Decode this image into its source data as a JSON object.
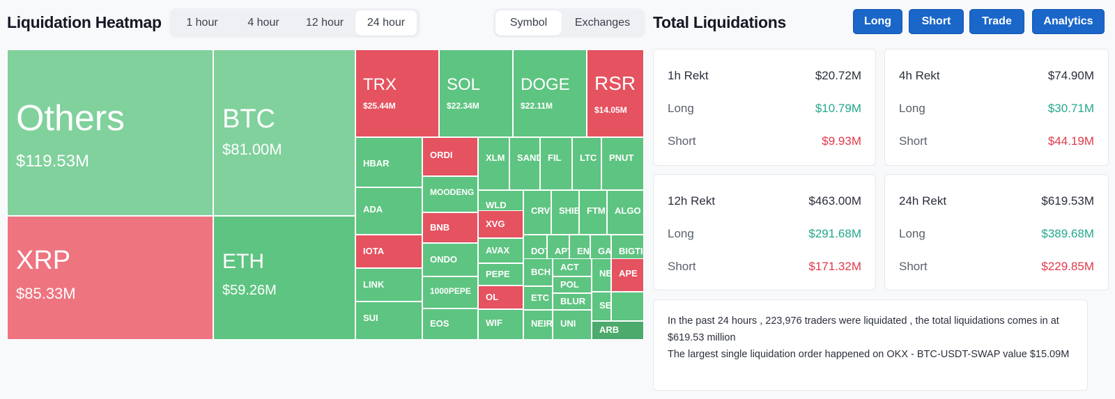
{
  "heatmap": {
    "title": "Liquidation Heatmap",
    "time_options": [
      "1 hour",
      "4 hour",
      "12 hour",
      "24 hour"
    ],
    "active_time": "24 hour",
    "view_options": [
      "Symbol",
      "Exchanges"
    ],
    "active_view": "Symbol",
    "tiles": [
      {
        "symbol": "Others",
        "value": "$119.53M",
        "side": "long"
      },
      {
        "symbol": "BTC",
        "value": "$81.00M",
        "side": "long"
      },
      {
        "symbol": "XRP",
        "value": "$85.33M",
        "side": "short"
      },
      {
        "symbol": "ETH",
        "value": "$59.26M",
        "side": "long"
      },
      {
        "symbol": "TRX",
        "value": "$25.44M",
        "side": "short"
      },
      {
        "symbol": "SOL",
        "value": "$22.34M",
        "side": "long"
      },
      {
        "symbol": "DOGE",
        "value": "$22.11M",
        "side": "long"
      },
      {
        "symbol": "RSR",
        "value": "$14.05M",
        "side": "short"
      },
      {
        "symbol": "HBAR",
        "value": "",
        "side": "long"
      },
      {
        "symbol": "ORDI",
        "value": "",
        "side": "short"
      },
      {
        "symbol": "XLM",
        "value": "",
        "side": "long"
      },
      {
        "symbol": "SAND",
        "value": "",
        "side": "long"
      },
      {
        "symbol": "FIL",
        "value": "",
        "side": "long"
      },
      {
        "symbol": "LTC",
        "value": "",
        "side": "long"
      },
      {
        "symbol": "PNUT",
        "value": "",
        "side": "long"
      },
      {
        "symbol": "ADA",
        "value": "",
        "side": "long"
      },
      {
        "symbol": "MOODENG",
        "value": "",
        "side": "long"
      },
      {
        "symbol": "WLD",
        "value": "",
        "side": "long"
      },
      {
        "symbol": "CRV",
        "value": "",
        "side": "long"
      },
      {
        "symbol": "SHIB",
        "value": "",
        "side": "long"
      },
      {
        "symbol": "FTM",
        "value": "",
        "side": "long"
      },
      {
        "symbol": "ALGO",
        "value": "",
        "side": "long"
      },
      {
        "symbol": "BNB",
        "value": "",
        "side": "short"
      },
      {
        "symbol": "XVG",
        "value": "",
        "side": "short"
      },
      {
        "symbol": "IOTA",
        "value": "",
        "side": "short"
      },
      {
        "symbol": "AVAX",
        "value": "",
        "side": "long"
      },
      {
        "symbol": "DOT",
        "value": "",
        "side": "long"
      },
      {
        "symbol": "APT",
        "value": "",
        "side": "long"
      },
      {
        "symbol": "ENA",
        "value": "",
        "side": "long"
      },
      {
        "symbol": "GALA",
        "value": "",
        "side": "long"
      },
      {
        "symbol": "BIGTIME",
        "value": "",
        "side": "long"
      },
      {
        "symbol": "ONDO",
        "value": "",
        "side": "long"
      },
      {
        "symbol": "PEPE",
        "value": "",
        "side": "long"
      },
      {
        "symbol": "BCH",
        "value": "",
        "side": "long"
      },
      {
        "symbol": "ACT",
        "value": "",
        "side": "long"
      },
      {
        "symbol": "NEAR",
        "value": "",
        "side": "long"
      },
      {
        "symbol": "APE",
        "value": "",
        "side": "short"
      },
      {
        "symbol": "LINK",
        "value": "",
        "side": "long"
      },
      {
        "symbol": "1000PEPE",
        "value": "",
        "side": "long"
      },
      {
        "symbol": "OL",
        "value": "",
        "side": "short"
      },
      {
        "symbol": "ETC",
        "value": "",
        "side": "long"
      },
      {
        "symbol": "POL",
        "value": "",
        "side": "long"
      },
      {
        "symbol": "BLUR",
        "value": "",
        "side": "long"
      },
      {
        "symbol": "SEI",
        "value": "",
        "side": "long"
      },
      {
        "symbol": "SUI",
        "value": "",
        "side": "long"
      },
      {
        "symbol": "EOS",
        "value": "",
        "side": "long"
      },
      {
        "symbol": "WIF",
        "value": "",
        "side": "long"
      },
      {
        "symbol": "NEIRO",
        "value": "",
        "side": "long"
      },
      {
        "symbol": "UNI",
        "value": "",
        "side": "long"
      },
      {
        "symbol": "ARB",
        "value": "",
        "side": "long"
      },
      {
        "symbol": "",
        "value": "",
        "side": "long"
      },
      {
        "symbol": "",
        "value": "",
        "side": "long"
      },
      {
        "symbol": "",
        "value": "",
        "side": "long"
      },
      {
        "symbol": "",
        "value": "",
        "side": "long"
      },
      {
        "symbol": "",
        "value": "",
        "side": "long"
      },
      {
        "symbol": "",
        "value": "",
        "side": "long"
      }
    ]
  },
  "liquidations": {
    "title": "Total Liquidations",
    "buttons": [
      "Long",
      "Short",
      "Trade",
      "Analytics"
    ],
    "cards": [
      {
        "period": "1h Rekt",
        "total": "$20.72M",
        "long_label": "Long",
        "long": "$10.79M",
        "short_label": "Short",
        "short": "$9.93M"
      },
      {
        "period": "4h Rekt",
        "total": "$74.90M",
        "long_label": "Long",
        "long": "$30.71M",
        "short_label": "Short",
        "short": "$44.19M"
      },
      {
        "period": "12h Rekt",
        "total": "$463.00M",
        "long_label": "Long",
        "long": "$291.68M",
        "short_label": "Short",
        "short": "$171.32M"
      },
      {
        "period": "24h Rekt",
        "total": "$619.53M",
        "long_label": "Long",
        "long": "$389.68M",
        "short_label": "Short",
        "short": "$229.85M"
      }
    ],
    "summary_line1": "In the past 24 hours , 223,976 traders were liquidated , the total liquidations comes in at $619.53 million",
    "summary_line2": "The largest single liquidation order happened on OKX - BTC-USDT-SWAP value $15.09M"
  },
  "colors": {
    "long": "#5ec481",
    "long_light": "#80d19c",
    "short": "#e55260",
    "short_light": "#ee7480",
    "accent_button": "#1a66c9",
    "long_text": "#23a88c",
    "short_text": "#e0394b"
  }
}
